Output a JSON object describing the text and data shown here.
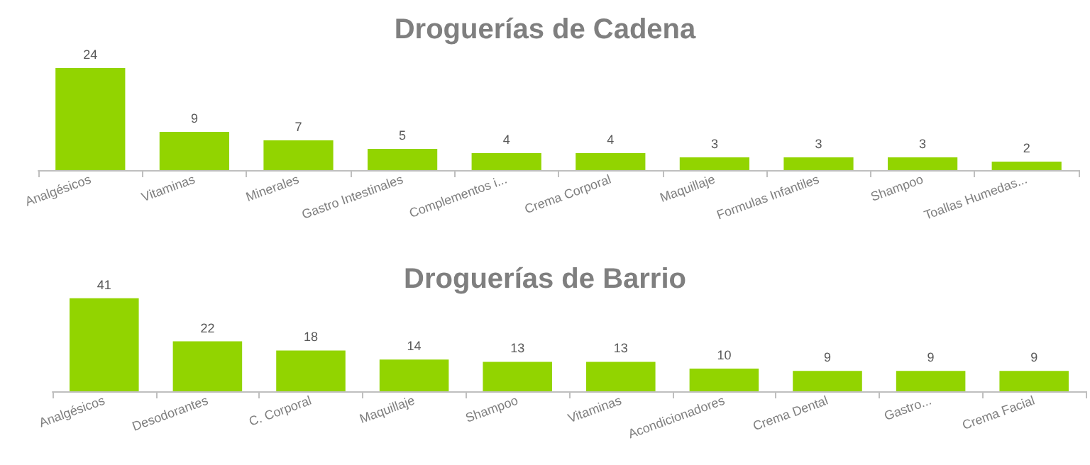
{
  "chart_data": [
    {
      "type": "bar",
      "title": "Droguerías de Cadena",
      "categories": [
        "Analgésicos",
        "Vitaminas",
        "Minerales",
        "Gastro Intestinales",
        "Complementos i...",
        "Crema Corporal",
        "Maquillaje",
        "Formulas Infantiles",
        "Shampoo",
        "Toallas Humedas..."
      ],
      "values": [
        24,
        9,
        7,
        5,
        4,
        4,
        3,
        3,
        3,
        2
      ],
      "color": "#92d400",
      "data_labels": true
    },
    {
      "type": "bar",
      "title": "Droguerías de Barrio",
      "categories": [
        "Analgésicos",
        "Desodorantes",
        "C. Corporal",
        "Maquillaje",
        "Shampoo",
        "Vitaminas",
        "Acondicionadores",
        "Crema Dental",
        "Gastro...",
        "Crema Facial"
      ],
      "values": [
        41,
        22,
        18,
        14,
        13,
        13,
        10,
        9,
        9,
        9
      ],
      "color": "#92d400",
      "data_labels": true
    }
  ]
}
